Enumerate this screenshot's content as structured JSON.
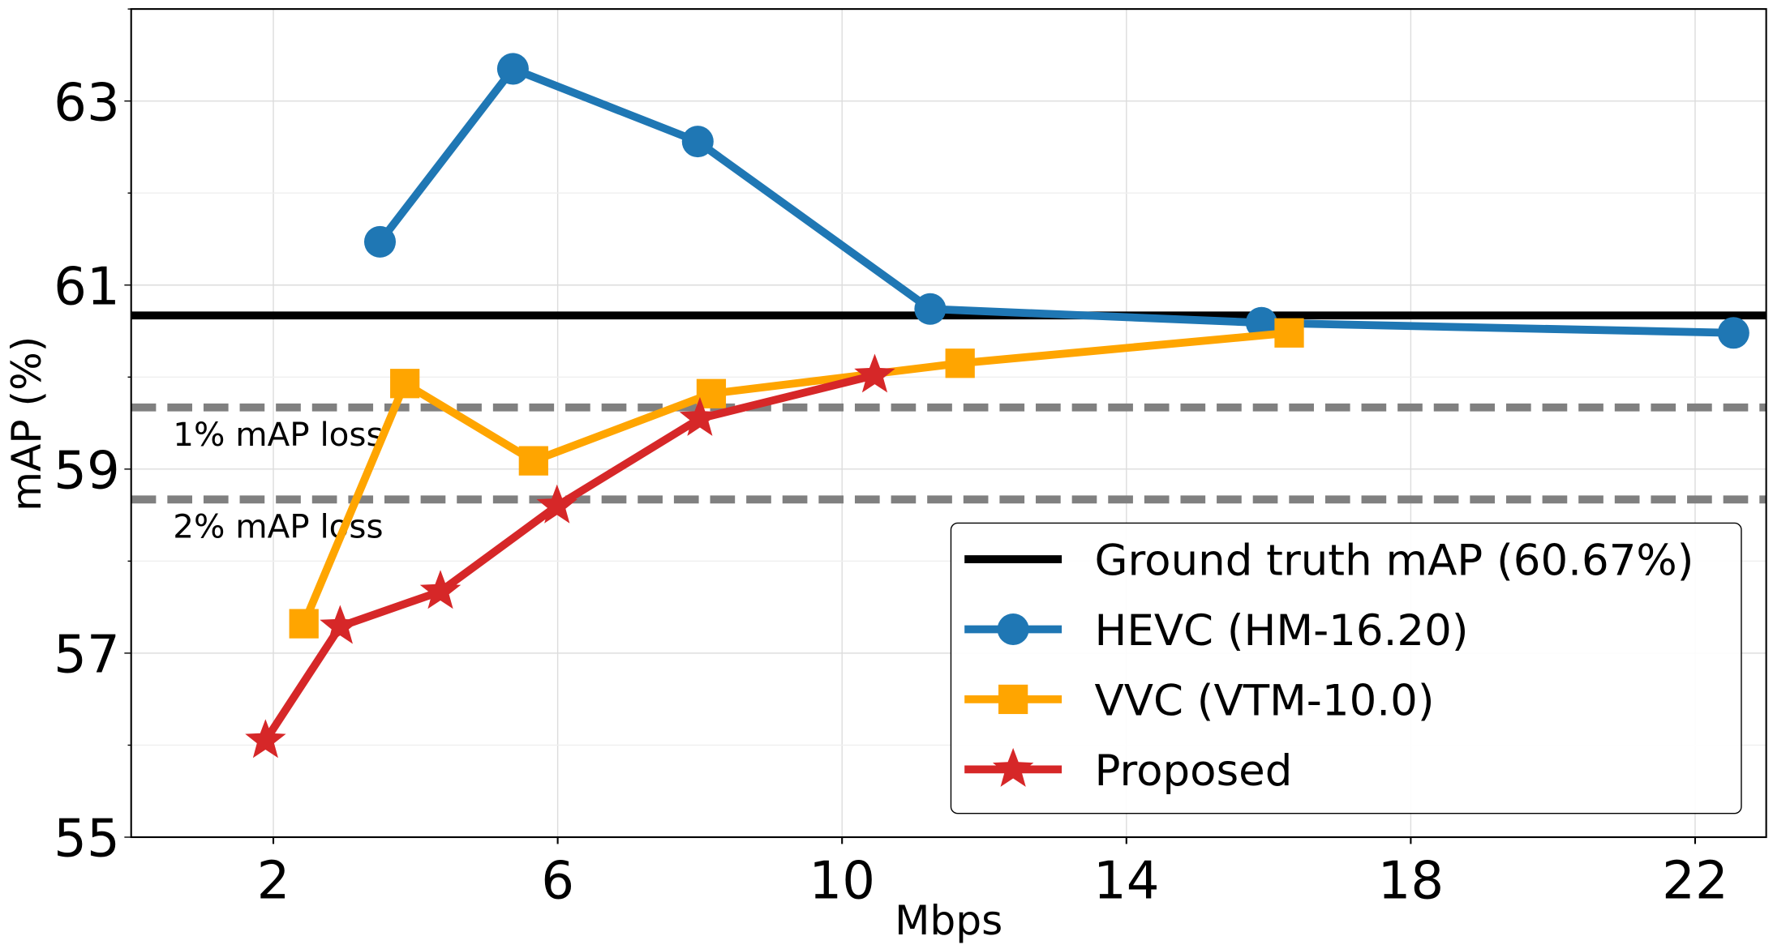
{
  "chart_data": {
    "type": "line",
    "title": "",
    "xlabel": "Mbps",
    "ylabel": "mAP (%)",
    "xlim": [
      0,
      23
    ],
    "ylim": [
      55,
      64
    ],
    "xticks": [
      2,
      6,
      10,
      14,
      18,
      22
    ],
    "yticks": [
      55,
      57,
      59,
      61,
      63
    ],
    "grid": true,
    "legend_position": "lower-right",
    "reference_lines": [
      {
        "name": "Ground truth mAP (60.67%)",
        "y": 60.67,
        "color": "#000000",
        "style": "solid",
        "in_legend": true
      },
      {
        "label": "1% mAP loss",
        "y": 59.67,
        "color": "#808080",
        "style": "dashed"
      },
      {
        "label": "2% mAP loss",
        "y": 58.67,
        "color": "#808080",
        "style": "dashed"
      }
    ],
    "series": [
      {
        "name": "HEVC (HM-16.20)",
        "color": "#1f77b4",
        "marker": "circle",
        "x": [
          3.5,
          5.37,
          7.97,
          11.24,
          15.9,
          22.54
        ],
        "y": [
          61.47,
          63.35,
          62.56,
          60.74,
          60.59,
          60.48
        ]
      },
      {
        "name": "VVC (VTM-10.0)",
        "color": "#ffa500",
        "marker": "square",
        "x": [
          2.43,
          3.85,
          5.66,
          8.16,
          11.66,
          16.29
        ],
        "y": [
          57.32,
          59.93,
          59.09,
          59.82,
          60.15,
          60.48
        ]
      },
      {
        "name": "Proposed",
        "color": "#d62728",
        "marker": "star",
        "x": [
          1.89,
          2.94,
          4.35,
          5.99,
          8.0,
          10.46
        ],
        "y": [
          56.05,
          57.29,
          57.67,
          58.6,
          59.55,
          60.02
        ]
      }
    ]
  }
}
